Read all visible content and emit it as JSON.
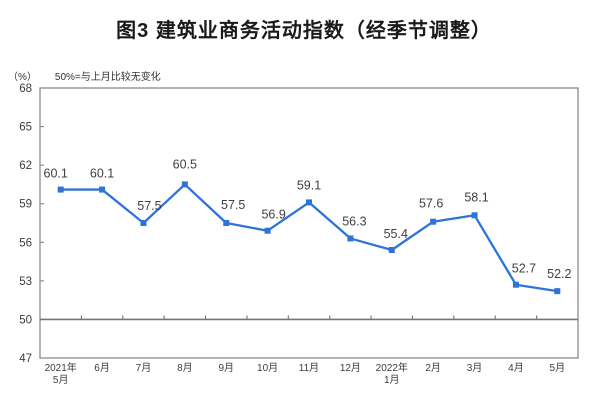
{
  "chart_data": {
    "type": "line",
    "title": "图3 建筑业商务活动指数（经季节调整）",
    "unit_label": "（%）",
    "note": "50%=与上月比较无变化",
    "categories": [
      "2021年\n5月",
      "6月",
      "7月",
      "8月",
      "9月",
      "10月",
      "11月",
      "12月",
      "2022年\n1月",
      "2月",
      "3月",
      "4月",
      "5月"
    ],
    "series": [
      {
        "name": "建筑业商务活动指数",
        "values": [
          60.1,
          60.1,
          57.5,
          60.5,
          57.5,
          56.9,
          59.1,
          56.3,
          55.4,
          57.6,
          58.1,
          52.7,
          52.2
        ]
      }
    ],
    "data_labels": [
      "60.1",
      "60.1",
      "57.5",
      "60.5",
      "57.5",
      "56.9",
      "59.1",
      "56.3",
      "55.4",
      "57.6",
      "58.1",
      "52.7",
      "52.2"
    ],
    "ylim": [
      47,
      68
    ],
    "yticks": [
      47,
      50,
      53,
      56,
      59,
      62,
      65,
      68
    ],
    "reference_line": 50,
    "grid": false,
    "legend_position": "none",
    "colors": {
      "line": "#2E73D9",
      "marker": "#2E73D9",
      "data_label": "#404040",
      "axis_text": "#3d3d3d",
      "plot_border": "#8c8c8c",
      "reference_line": "#757575",
      "background": "#ffffff"
    }
  }
}
